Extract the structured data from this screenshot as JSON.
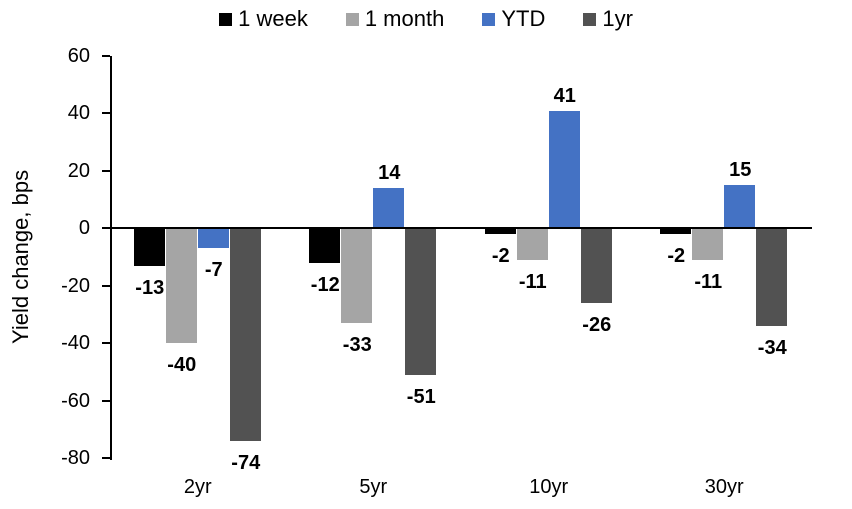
{
  "chart_data": {
    "type": "bar",
    "title": "",
    "ylabel": "Yield change, bps",
    "xlabel": "",
    "ylim": [
      -80,
      60
    ],
    "ytick_step": 20,
    "grid": false,
    "legend_position": "top",
    "data_labels": "outside-end",
    "axis_color": "#000000",
    "background_color": "#ffffff",
    "categories": [
      "2yr",
      "5yr",
      "10yr",
      "30yr"
    ],
    "series": [
      {
        "name": "1 week",
        "color": "#000000",
        "values": [
          -13,
          -12,
          -2,
          -2
        ]
      },
      {
        "name": "1 month",
        "color": "#A5A5A5",
        "values": [
          -40,
          -33,
          -11,
          -11
        ]
      },
      {
        "name": "YTD",
        "color": "#4472C4",
        "values": [
          -7,
          14,
          41,
          15
        ]
      },
      {
        "name": "1yr",
        "color": "#525252",
        "values": [
          -74,
          -51,
          -26,
          -34
        ]
      }
    ]
  }
}
